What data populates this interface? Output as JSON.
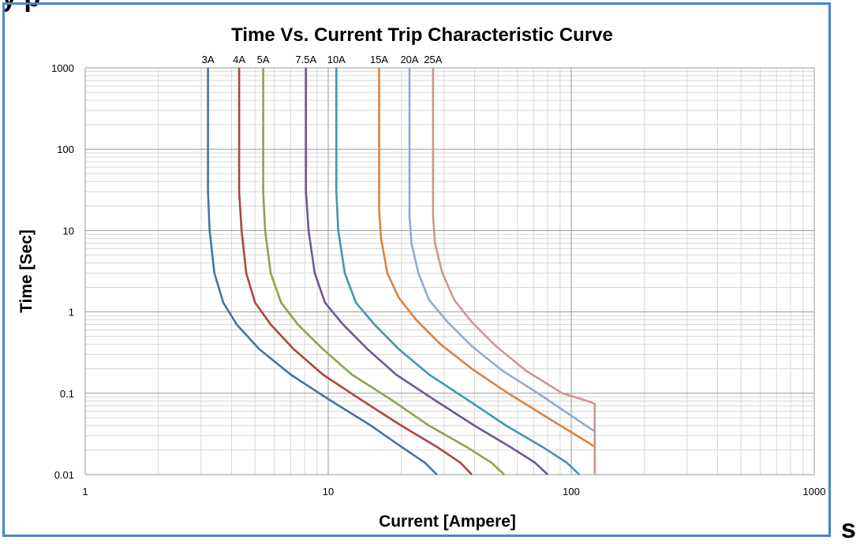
{
  "page": {
    "top_partial_text": "y p",
    "right_partial_text": "s"
  },
  "chart_data": {
    "type": "line",
    "title": "Time Vs. Current Trip Characteristic Curve",
    "xlabel": "Current [Ampere]",
    "ylabel": "Time [Sec]",
    "x_scale": "log",
    "y_scale": "log",
    "xlim": [
      1,
      1000
    ],
    "ylim": [
      0.01,
      1000
    ],
    "x_ticks": [
      1,
      10,
      100,
      1000
    ],
    "x_tick_labels": [
      "1",
      "10",
      "100",
      "1000"
    ],
    "y_ticks": [
      0.01,
      0.1,
      1,
      10,
      100,
      1000
    ],
    "y_tick_labels": [
      "0.01",
      "0.1",
      "1",
      "10",
      "100",
      "1000"
    ],
    "grid": true,
    "legend": "curve labels along top edge of plot",
    "series": [
      {
        "name": "3A",
        "color": "#4572a7",
        "x": [
          3.2,
          3.2,
          3.25,
          3.4,
          3.7,
          4.2,
          5.2,
          7.0,
          10.0,
          15.0,
          20.0,
          25.0,
          28.0
        ],
        "y": [
          1000,
          30,
          10,
          3,
          1.3,
          0.7,
          0.35,
          0.17,
          0.085,
          0.04,
          0.022,
          0.014,
          0.01
        ]
      },
      {
        "name": "4A",
        "color": "#aa4643",
        "x": [
          4.3,
          4.3,
          4.4,
          4.6,
          5.0,
          5.8,
          7.2,
          9.5,
          13.5,
          20.0,
          28.0,
          35.0,
          39.0
        ],
        "y": [
          1000,
          30,
          10,
          3,
          1.3,
          0.7,
          0.35,
          0.17,
          0.085,
          0.04,
          0.022,
          0.014,
          0.01
        ]
      },
      {
        "name": "5A",
        "color": "#89a54e",
        "x": [
          5.4,
          5.4,
          5.5,
          5.8,
          6.4,
          7.5,
          9.5,
          12.5,
          18.0,
          26.0,
          37.0,
          47.0,
          53.0
        ],
        "y": [
          1000,
          30,
          10,
          3,
          1.3,
          0.7,
          0.35,
          0.17,
          0.085,
          0.04,
          0.022,
          0.014,
          0.01
        ]
      },
      {
        "name": "7.5A",
        "color": "#71588f",
        "x": [
          8.1,
          8.1,
          8.3,
          8.8,
          9.7,
          11.5,
          14.5,
          19.0,
          27.0,
          40.0,
          56.0,
          71.0,
          80.0
        ],
        "y": [
          1000,
          30,
          10,
          3,
          1.3,
          0.7,
          0.35,
          0.17,
          0.085,
          0.04,
          0.022,
          0.014,
          0.01
        ]
      },
      {
        "name": "10A",
        "color": "#4198af",
        "x": [
          10.8,
          10.8,
          11.0,
          11.7,
          13.0,
          15.5,
          19.5,
          26.0,
          37.0,
          54.0,
          76.0,
          96.0,
          108.0
        ],
        "y": [
          1000,
          30,
          10,
          3,
          1.3,
          0.7,
          0.35,
          0.17,
          0.085,
          0.04,
          0.022,
          0.014,
          0.01
        ]
      },
      {
        "name": "15A",
        "color": "#db843d",
        "x": [
          16.2,
          16.2,
          16.5,
          17.5,
          19.5,
          23.0,
          29.0,
          39.0,
          55.0,
          80.0,
          112.0,
          125.0,
          125.0
        ],
        "y": [
          1000,
          18,
          8,
          3,
          1.5,
          0.8,
          0.4,
          0.2,
          0.1,
          0.05,
          0.027,
          0.022,
          0.01
        ]
      },
      {
        "name": "20A",
        "color": "#93a9cf",
        "x": [
          21.6,
          21.6,
          22.0,
          23.5,
          26.0,
          31.0,
          39.0,
          52.0,
          73.0,
          105.0,
          125.0,
          125.0
        ],
        "y": [
          1000,
          15,
          7,
          3,
          1.4,
          0.75,
          0.38,
          0.19,
          0.1,
          0.048,
          0.034,
          0.01
        ]
      },
      {
        "name": "25A",
        "color": "#d19392",
        "x": [
          27.0,
          27.0,
          27.5,
          29.5,
          33.0,
          39.0,
          49.0,
          65.0,
          92.0,
          120.0,
          125.0,
          125.0
        ],
        "y": [
          1000,
          15,
          7,
          3,
          1.4,
          0.75,
          0.38,
          0.19,
          0.1,
          0.078,
          0.074,
          0.01
        ]
      }
    ]
  }
}
